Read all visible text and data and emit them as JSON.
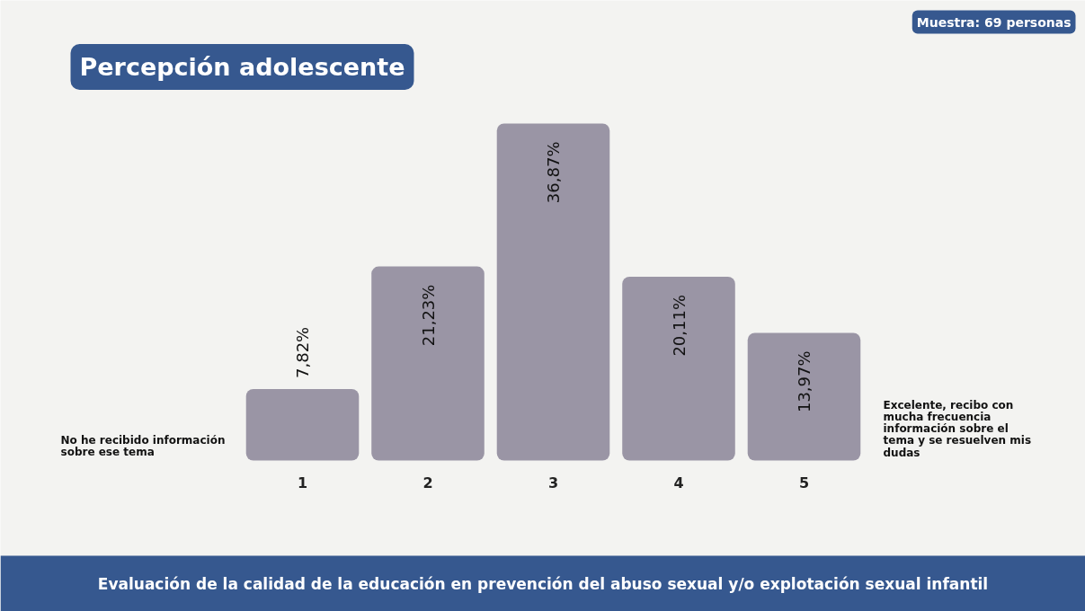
{
  "chart_data": {
    "type": "bar",
    "title": "Percepción adolescente",
    "subtitle": "Evaluación de la calidad de la educación en prevención del abuso sexual y/o explotación sexual infantil",
    "categories": [
      "1",
      "2",
      "3",
      "4",
      "5"
    ],
    "values": [
      7.82,
      21.23,
      36.87,
      20.11,
      13.97
    ],
    "value_labels": [
      "7,82%",
      "21,23%",
      "36,87%",
      "20,11%",
      "13,97%"
    ],
    "color": "#9a95a5",
    "grid": false,
    "annotations": [
      "Muestra: 69 personas",
      "No he recibido información sobre ese tema",
      "Excelente, recibo con mucha frecuencia información sobre el tema y se resuelven mis dudas"
    ]
  }
}
